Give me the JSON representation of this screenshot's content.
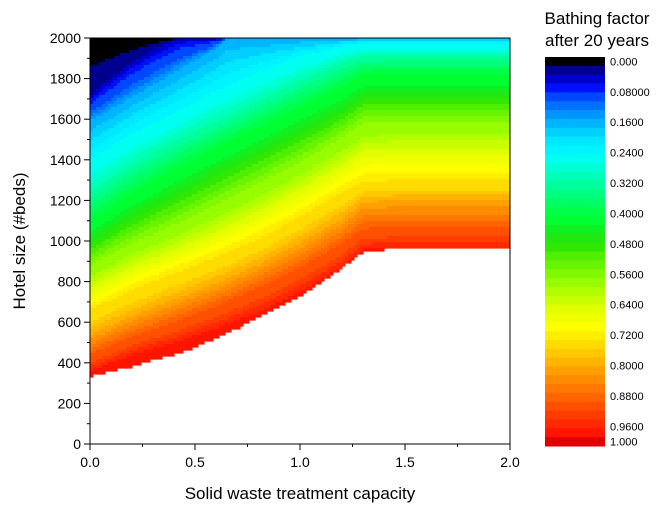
{
  "chart_data": {
    "type": "heatmap",
    "title": "",
    "xlabel": "Solid waste treatment capacity",
    "ylabel": "Hotel size (#beds)",
    "xlim": [
      0.0,
      2.0
    ],
    "ylim": [
      0,
      2000
    ],
    "x_ticks": [
      "0.0",
      "0.5",
      "1.0",
      "1.5",
      "2.0"
    ],
    "y_ticks": [
      "0",
      "200",
      "400",
      "600",
      "800",
      "1000",
      "1200",
      "1400",
      "1600",
      "1800",
      "2000"
    ],
    "legend_title_lines": [
      "Bathing factor",
      "after 20 years"
    ],
    "legend_labels": [
      "0.000",
      "0.08000",
      "0.1600",
      "0.2400",
      "0.3200",
      "0.4000",
      "0.4800",
      "0.5600",
      "0.6400",
      "0.7200",
      "0.8000",
      "0.8800",
      "0.9600",
      "1.000"
    ],
    "legend_label_levels": [
      0.0,
      0.08,
      0.16,
      0.24,
      0.32,
      0.4,
      0.48,
      0.56,
      0.64,
      0.72,
      0.8,
      0.88,
      0.96,
      1.0
    ],
    "levels": [
      0.0,
      0.02,
      0.04,
      0.06,
      0.08,
      0.1,
      0.12,
      0.14,
      0.16,
      0.18,
      0.2,
      0.22,
      0.24,
      0.26,
      0.28,
      0.3,
      0.32,
      0.34,
      0.36,
      0.38,
      0.4,
      0.42,
      0.44,
      0.46,
      0.48,
      0.5,
      0.52,
      0.54,
      0.56,
      0.58,
      0.6,
      0.62,
      0.64,
      0.66,
      0.68,
      0.7,
      0.72,
      0.74,
      0.76,
      0.78,
      0.8,
      0.82,
      0.84,
      0.86,
      0.88,
      0.9,
      0.92,
      0.94,
      0.96,
      0.98,
      1.0
    ],
    "colors": [
      "#000000",
      "#00008e",
      "#0000cc",
      "#0010ff",
      "#0048ff",
      "#0070ff",
      "#0094ff",
      "#00b4ff",
      "#00cfff",
      "#00e8ff",
      "#00f4ff",
      "#00fff0",
      "#00ffd4",
      "#00ffb8",
      "#00ff9c",
      "#00ff80",
      "#00ff64",
      "#00ff48",
      "#00ff30",
      "#10f020",
      "#20e810",
      "#30e800",
      "#50ee00",
      "#68f400",
      "#80f800",
      "#98fc00",
      "#b0ff00",
      "#c8ff00",
      "#e0ff00",
      "#f0ff00",
      "#ffff00",
      "#ffee00",
      "#ffdc00",
      "#ffc800",
      "#ffb400",
      "#ffa000",
      "#ff8c00",
      "#ff7800",
      "#ff6400",
      "#ff5000",
      "#ff3c00",
      "#ff2800",
      "#ff1400",
      "#e00000"
    ],
    "contour_lines": [
      {
        "level": 0.04,
        "x": [
          0.0,
          0.05,
          0.1,
          0.15,
          0.2,
          0.25,
          0.3,
          0.35,
          0.4,
          0.45
        ],
        "y": [
          1720,
          1760,
          1800,
          1840,
          1880,
          1910,
          1940,
          1965,
          1990,
          2000
        ]
      },
      {
        "level": 0.16,
        "x": [
          0.0,
          0.1,
          0.2,
          0.3,
          0.4,
          0.5,
          0.6,
          0.65
        ],
        "y": [
          1590,
          1650,
          1710,
          1770,
          1830,
          1890,
          1950,
          2000
        ]
      },
      {
        "level": 0.24,
        "x": [
          0.0,
          0.2,
          0.4,
          0.6,
          0.8,
          1.0,
          1.2,
          1.3,
          1.45,
          2.0
        ],
        "y": [
          1400,
          1530,
          1630,
          1740,
          1830,
          1910,
          1960,
          1975,
          1975,
          1975
        ]
      },
      {
        "level": 0.32,
        "x": [
          0.0,
          0.2,
          0.4,
          0.6,
          0.8,
          1.0,
          1.2,
          1.3,
          1.45,
          2.0
        ],
        "y": [
          1240,
          1380,
          1490,
          1590,
          1690,
          1790,
          1880,
          1910,
          1910,
          1910
        ]
      },
      {
        "level": 0.4,
        "x": [
          0.0,
          0.2,
          0.4,
          0.6,
          0.8,
          1.0,
          1.2,
          1.3,
          1.45,
          2.0
        ],
        "y": [
          1100,
          1240,
          1350,
          1460,
          1560,
          1660,
          1760,
          1820,
          1830,
          1830
        ]
      },
      {
        "level": 0.48,
        "x": [
          0.0,
          0.2,
          0.4,
          0.6,
          0.8,
          1.0,
          1.2,
          1.3,
          1.45,
          2.0
        ],
        "y": [
          980,
          1110,
          1210,
          1320,
          1420,
          1520,
          1630,
          1700,
          1710,
          1710
        ]
      },
      {
        "level": 0.56,
        "x": [
          0.0,
          0.2,
          0.4,
          0.6,
          0.8,
          1.0,
          1.2,
          1.3,
          1.45,
          2.0
        ],
        "y": [
          880,
          990,
          1080,
          1180,
          1280,
          1390,
          1510,
          1580,
          1590,
          1590
        ]
      },
      {
        "level": 0.64,
        "x": [
          0.0,
          0.2,
          0.4,
          0.6,
          0.8,
          1.0,
          1.2,
          1.3,
          1.45,
          2.0
        ],
        "y": [
          770,
          880,
          960,
          1050,
          1150,
          1260,
          1380,
          1450,
          1460,
          1460
        ]
      },
      {
        "level": 0.72,
        "x": [
          0.0,
          0.2,
          0.4,
          0.6,
          0.8,
          1.0,
          1.2,
          1.3,
          1.45,
          2.0
        ],
        "y": [
          660,
          760,
          840,
          920,
          1010,
          1120,
          1240,
          1290,
          1300,
          1300
        ]
      },
      {
        "level": 0.8,
        "x": [
          0.0,
          0.2,
          0.4,
          0.6,
          0.8,
          1.0,
          1.2,
          1.3,
          1.45,
          2.0
        ],
        "y": [
          540,
          630,
          710,
          790,
          880,
          990,
          1110,
          1190,
          1200,
          1200
        ]
      },
      {
        "level": 0.88,
        "x": [
          0.0,
          0.2,
          0.4,
          0.6,
          0.8,
          1.0,
          1.2,
          1.3,
          1.45,
          2.0
        ],
        "y": [
          440,
          530,
          600,
          680,
          770,
          870,
          990,
          1060,
          1070,
          1070
        ]
      },
      {
        "level": 0.96,
        "x": [
          0.0,
          0.2,
          0.4,
          0.6,
          0.8,
          1.0,
          1.2,
          1.3,
          1.45,
          2.0
        ],
        "y": [
          360,
          440,
          500,
          570,
          650,
          750,
          870,
          960,
          970,
          970
        ]
      },
      {
        "level": 0.99,
        "x": [
          0.0,
          0.1,
          0.2,
          0.3,
          0.4,
          0.5,
          0.6,
          0.7,
          0.8,
          0.9,
          1.0,
          1.1,
          1.15,
          1.2,
          1.3,
          1.45,
          2.0
        ],
        "y": [
          320,
          340,
          350,
          390,
          410,
          450,
          500,
          550,
          610,
          660,
          720,
          790,
          830,
          870,
          940,
          960,
          960
        ]
      }
    ]
  }
}
